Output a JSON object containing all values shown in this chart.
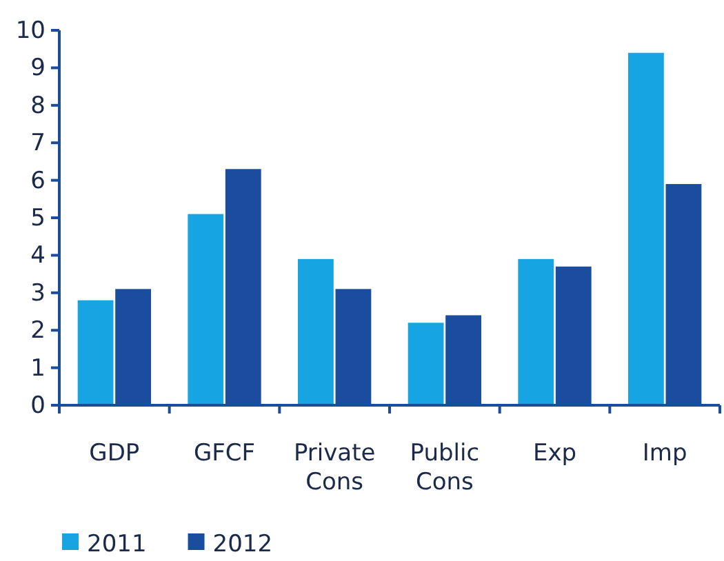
{
  "chart_data": {
    "type": "bar",
    "categories": [
      "GDP",
      "GFCF",
      "Private Cons",
      "Public Cons",
      "Exp",
      "Imp"
    ],
    "series": [
      {
        "name": "2011",
        "color": "#17a4e3",
        "values": [
          2.8,
          5.1,
          3.9,
          2.2,
          3.9,
          9.4
        ]
      },
      {
        "name": "2012",
        "color": "#1b4d9e",
        "values": [
          3.1,
          6.3,
          3.1,
          2.4,
          3.7,
          5.9
        ]
      }
    ],
    "ylim": [
      0,
      10
    ],
    "yticks": [
      0,
      1,
      2,
      3,
      4,
      5,
      6,
      7,
      8,
      9,
      10
    ],
    "grid": false,
    "legend": "bottom left"
  }
}
